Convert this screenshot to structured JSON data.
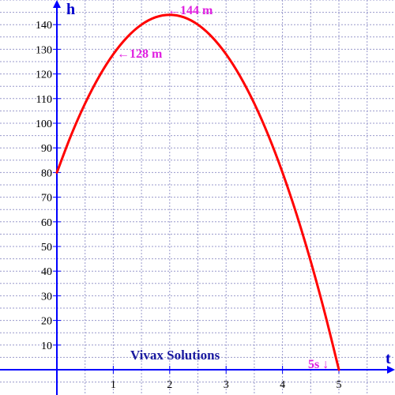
{
  "chart_data": {
    "type": "line",
    "xlabel": "t",
    "ylabel": "h",
    "xlim": [
      0,
      5
    ],
    "ylim": [
      0,
      140
    ],
    "x_ticks": [
      1,
      2,
      3,
      4,
      5
    ],
    "y_ticks": [
      10,
      20,
      30,
      40,
      50,
      60,
      70,
      80,
      90,
      100,
      110,
      120,
      130,
      140
    ],
    "grid": true,
    "series": [
      {
        "x": [
          0,
          0.25,
          0.5,
          0.75,
          1,
          1.25,
          1.5,
          1.75,
          2,
          2.25,
          2.5,
          2.75,
          3,
          3.25,
          3.5,
          3.75,
          4,
          4.25,
          4.5,
          4.75,
          5
        ],
        "y": [
          80,
          95,
          108,
          119,
          128,
          135,
          140,
          143,
          144,
          143,
          140,
          135,
          128,
          119,
          108,
          95,
          80,
          63,
          44,
          23,
          0
        ],
        "color": "#ff0000"
      }
    ],
    "annotations": [
      {
        "text": "←128 m",
        "x": 1,
        "y": 128
      },
      {
        "text": "←144 m",
        "x": 2,
        "y": 144
      },
      {
        "text": "5s ↓",
        "x": 5,
        "y": 0
      }
    ],
    "annotation_color": "#e020e0",
    "watermark": "Vivax Solutions",
    "watermark_color": "#1a1aa0",
    "axis_color": "#0000ff"
  }
}
